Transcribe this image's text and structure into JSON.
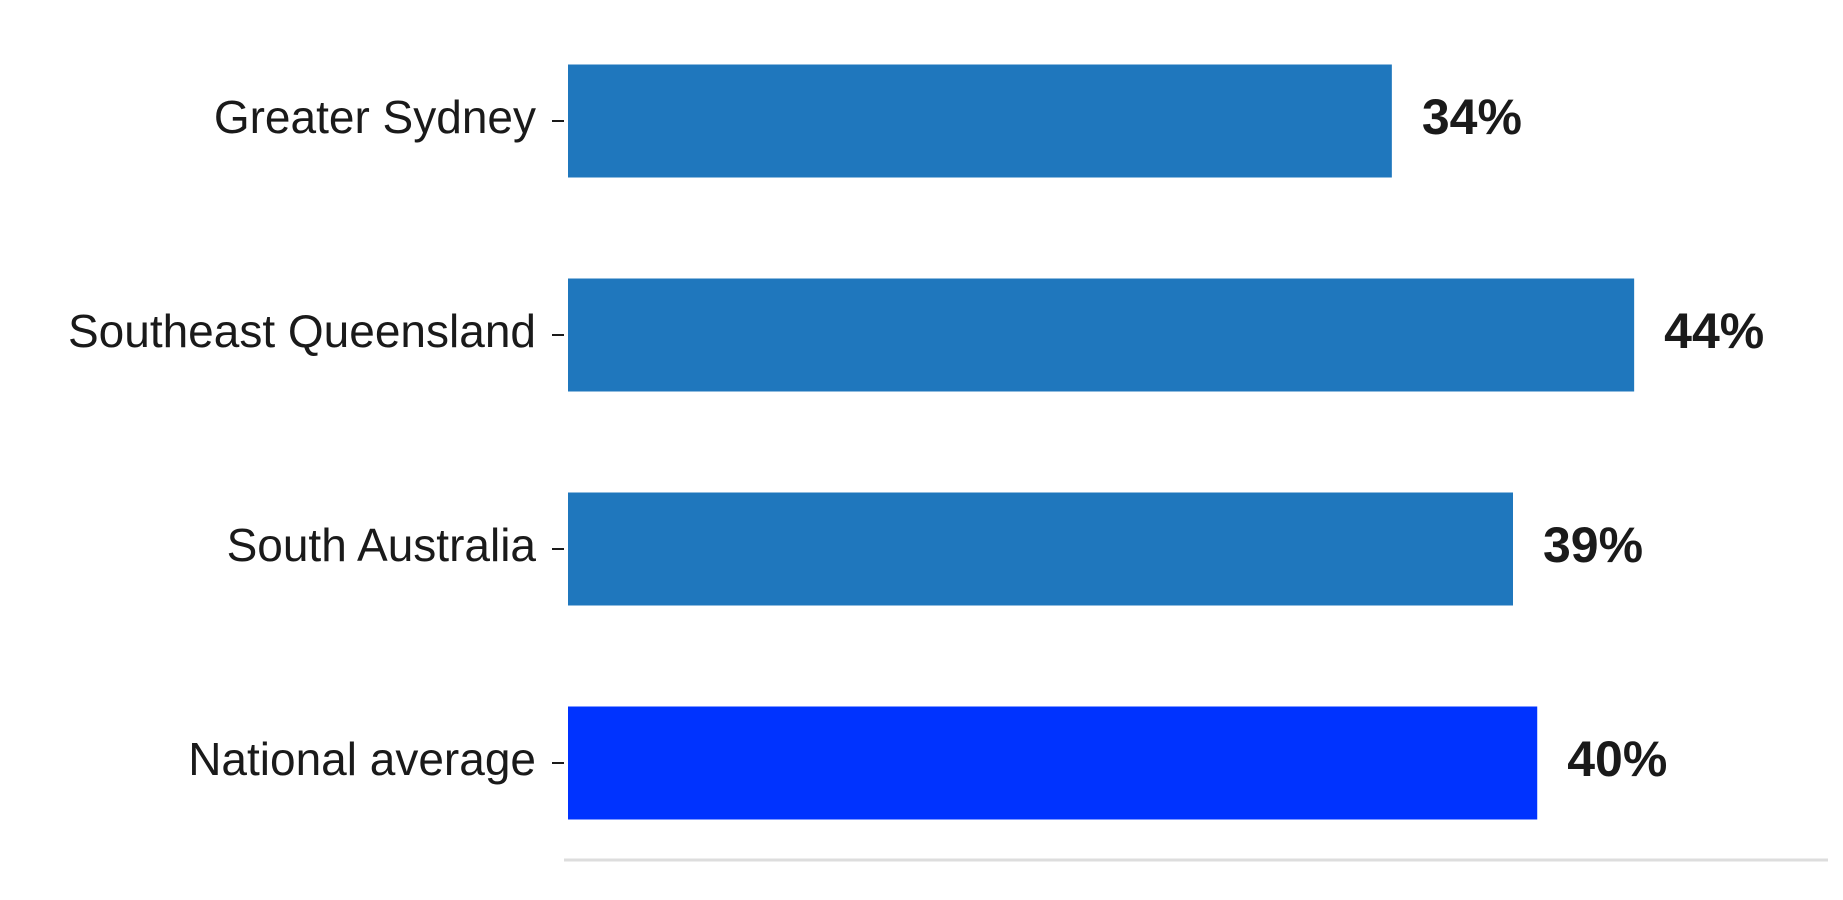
{
  "chart_data": {
    "type": "hbar",
    "categories": [
      "Greater Sydney",
      "Southeast Queensland",
      "South Australia",
      "National average"
    ],
    "values": [
      34,
      44,
      39,
      40
    ],
    "value_labels": [
      "34%",
      "44%",
      "39%",
      "40%"
    ],
    "colors": [
      "#1f77bd",
      "#1f77bd",
      "#1f77bd",
      "#0033ff"
    ],
    "xlim": [
      0,
      52
    ]
  }
}
